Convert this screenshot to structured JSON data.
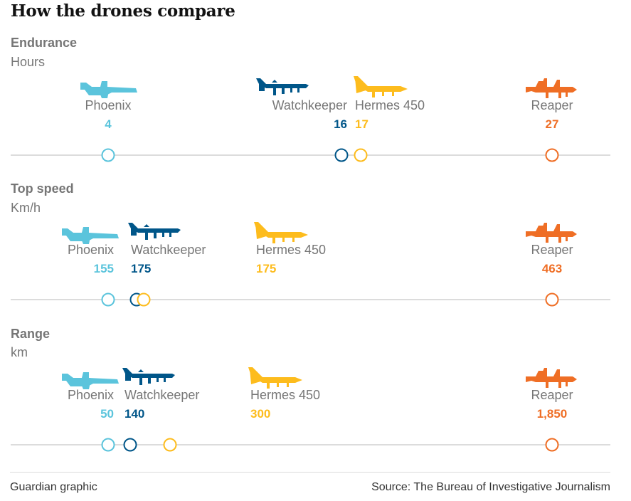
{
  "title": "How the drones compare",
  "footer": {
    "credit": "Guardian graphic",
    "source": "Source: The Bureau of Investigative Journalism"
  },
  "colors": {
    "Phoenix": "#5bc4dc",
    "Watchkeeper": "#005689",
    "Hermes 450": "#fdbc1d",
    "Reaper": "#ef6e25",
    "axis": "#dcdcdc",
    "label": "#767676"
  },
  "icon_names": [
    "phoenix-drone-icon",
    "watchkeeper-drone-icon",
    "hermes-drone-icon",
    "reaper-drone-icon"
  ],
  "chart_data": [
    {
      "type": "scatter",
      "title": "Endurance",
      "ylabel": "Hours",
      "series": [
        {
          "name": "Phoenix",
          "value": 4,
          "value_label": "4"
        },
        {
          "name": "Watchkeeper",
          "value": 16,
          "value_label": "16"
        },
        {
          "name": "Hermes 450",
          "value": 17,
          "value_label": "17"
        },
        {
          "name": "Reaper",
          "value": 27,
          "value_label": "27"
        }
      ]
    },
    {
      "type": "scatter",
      "title": "Top speed",
      "ylabel": "Km/h",
      "series": [
        {
          "name": "Phoenix",
          "value": 155,
          "value_label": "155"
        },
        {
          "name": "Watchkeeper",
          "value": 175,
          "value_label": "175"
        },
        {
          "name": "Hermes 450",
          "value": 175,
          "value_label": "175"
        },
        {
          "name": "Reaper",
          "value": 463,
          "value_label": "463"
        }
      ]
    },
    {
      "type": "scatter",
      "title": "Range",
      "ylabel": "km",
      "series": [
        {
          "name": "Phoenix",
          "value": 50,
          "value_label": "50"
        },
        {
          "name": "Watchkeeper",
          "value": 140,
          "value_label": "140"
        },
        {
          "name": "Hermes 450",
          "value": 300,
          "value_label": "300"
        },
        {
          "name": "Reaper",
          "value": 1850,
          "value_label": "1,850"
        }
      ]
    }
  ]
}
